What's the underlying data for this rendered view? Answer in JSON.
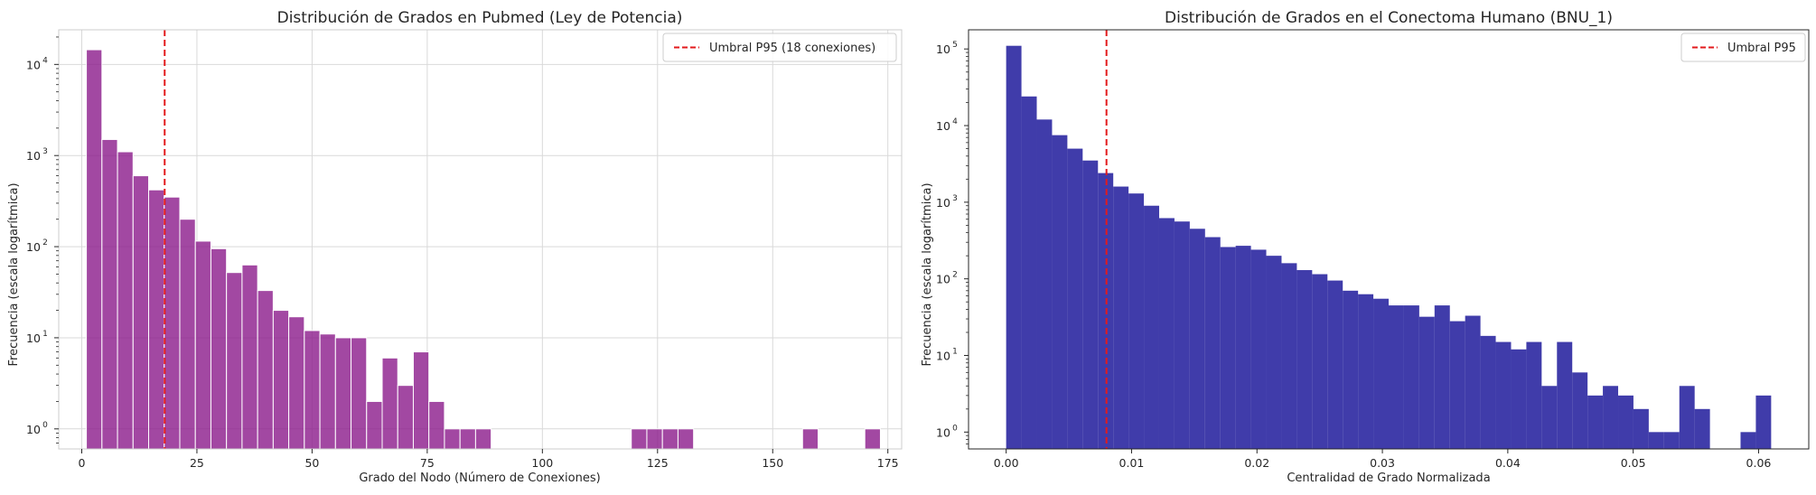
{
  "chart_data": [
    {
      "type": "bar",
      "title": "Distribución de Grados en Pubmed (Ley de Potencia)",
      "xlabel": "Grado del Nodo (Número de Conexiones)",
      "ylabel": "Frecuencia (escala logarítmica)",
      "xlim": [
        -5,
        178
      ],
      "xticks": [
        0,
        25,
        50,
        75,
        100,
        125,
        150,
        175
      ],
      "ylim_log10": [
        -0.22,
        4.38
      ],
      "y_scale": "log",
      "yticks": [
        0,
        1,
        2,
        3,
        4
      ],
      "grid": true,
      "bar_color": "#8b1a8b",
      "bin_start": 1,
      "bin_width": 3.38,
      "counts": [
        14500,
        1500,
        1100,
        600,
        420,
        350,
        200,
        115,
        95,
        52,
        63,
        33,
        20,
        17,
        12,
        11,
        10,
        10,
        2,
        6,
        3,
        7,
        2,
        1,
        1,
        1,
        0,
        0,
        0,
        0,
        0,
        0,
        0,
        0,
        0,
        1,
        1,
        1,
        1,
        0,
        0,
        0,
        0,
        0,
        0,
        0,
        1,
        0,
        0,
        0,
        1
      ],
      "threshold": {
        "x": 18,
        "color": "#e31a1c",
        "label": "Umbral P95 (18 conexiones)"
      },
      "legend_position": "top-right"
    },
    {
      "type": "bar",
      "title": "Distribución de Grados en el Conectoma Humano (BNU_1)",
      "xlabel": "Centralidad de Grado Normalizada",
      "ylabel": "Frecuencia (escala logarítmica)",
      "xlim": [
        -0.003,
        0.064
      ],
      "xticks": [
        0.0,
        0.01,
        0.02,
        0.03,
        0.04,
        0.05,
        0.06
      ],
      "xtick_labels": [
        "0.00",
        "0.01",
        "0.02",
        "0.03",
        "0.04",
        "0.05",
        "0.06"
      ],
      "ylim_log10": [
        -0.22,
        5.25
      ],
      "y_scale": "log",
      "yticks": [
        0,
        1,
        2,
        3,
        4,
        5
      ],
      "grid": false,
      "bar_color": "#1f1a9b",
      "bin_start": 0.0,
      "bin_width": 0.00122,
      "counts": [
        110000,
        24000,
        12000,
        7500,
        5000,
        3500,
        2400,
        1600,
        1300,
        900,
        620,
        560,
        450,
        350,
        260,
        270,
        240,
        200,
        160,
        130,
        115,
        95,
        70,
        63,
        55,
        45,
        45,
        32,
        45,
        28,
        33,
        18,
        15,
        12,
        15,
        4,
        15,
        6,
        3,
        4,
        3,
        2,
        1,
        1,
        4,
        2,
        0,
        0,
        1,
        3
      ],
      "threshold": {
        "x": 0.008,
        "color": "#e31a1c",
        "label": "Umbral P95"
      },
      "legend_position": "top-right"
    }
  ]
}
